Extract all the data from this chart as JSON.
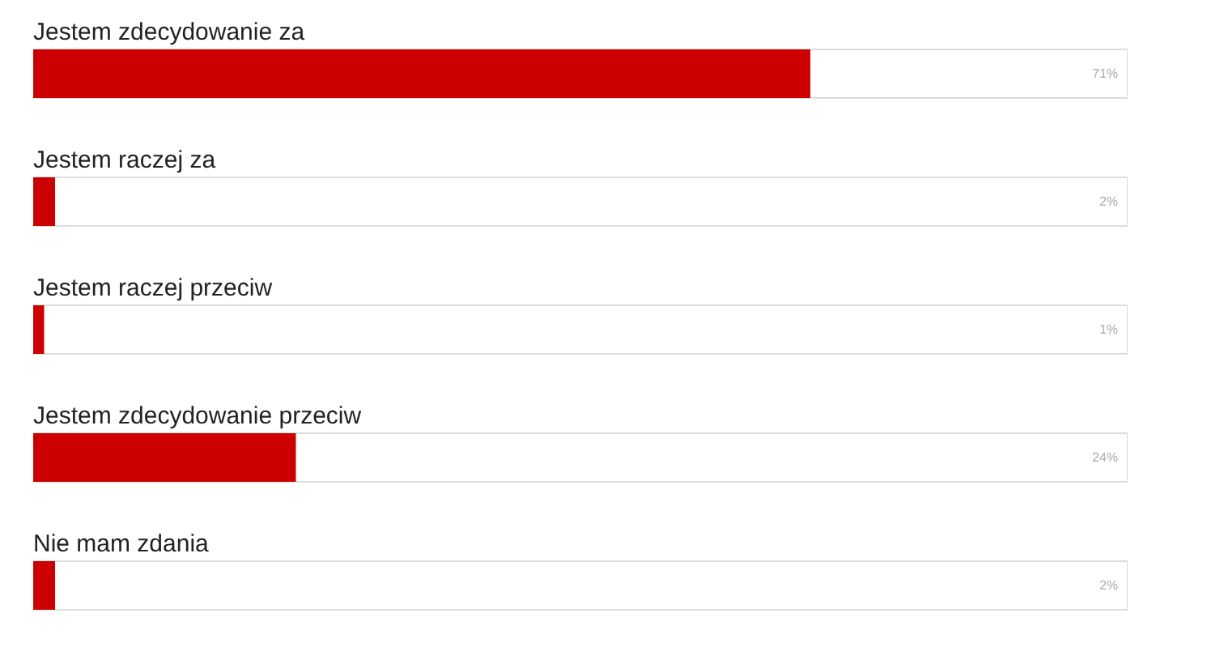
{
  "chart_data": {
    "type": "bar",
    "orientation": "horizontal",
    "categories": [
      "Jestem zdecydowanie za",
      "Jestem raczej za",
      "Jestem raczej przeciw",
      "Jestem zdecydowanie przeciw",
      "Nie mam zdania"
    ],
    "values": [
      71,
      2,
      1,
      24,
      2
    ],
    "value_labels": [
      "71%",
      "2%",
      "1%",
      "24%",
      "2%"
    ],
    "color": "#cc0000",
    "xlim": [
      0,
      100
    ],
    "tick_labels": false,
    "grid": false
  }
}
